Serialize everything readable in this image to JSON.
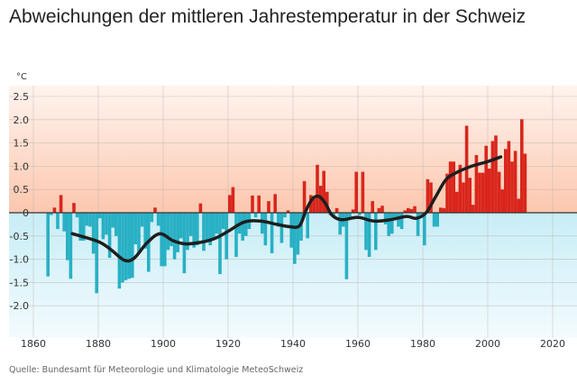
{
  "chart_data": {
    "type": "bar",
    "title": "Abweichungen der mittleren Jahrestemperatur in der Schweiz",
    "ylabel": "°C",
    "xlabel": "",
    "source": "Quelle: Bundesamt für Meteorologie und Klimatologie MeteoSchweiz",
    "xlim": [
      1860,
      2025
    ],
    "ylim": [
      -2.5,
      2.5
    ],
    "x_ticks": [
      "1860",
      "1880",
      "1900",
      "1920",
      "1940",
      "1960",
      "1980",
      "2000",
      "2020"
    ],
    "y_ticks": [
      "2.5",
      "2.0",
      "1.5",
      "1.0",
      "0.5",
      "0",
      "-0.5",
      "-1.0",
      "-1.5",
      "-2.0"
    ],
    "grid": true,
    "colors": {
      "positive": "#d9261c",
      "negative": "#29b0c4",
      "smooth": "#1e1e1e",
      "bg_positive": "#fcc7ae",
      "bg_negative": "#cdeef6"
    },
    "start_year": 1864,
    "values": [
      -1.37,
      -0.05,
      0.11,
      -0.35,
      0.38,
      -0.4,
      -1.02,
      -1.42,
      0.21,
      -0.1,
      -0.6,
      -0.6,
      -0.28,
      -0.3,
      -0.88,
      -1.73,
      -0.12,
      -0.57,
      -0.47,
      -0.97,
      -0.32,
      -0.5,
      -1.63,
      -1.5,
      -1.45,
      -1.42,
      -1.4,
      -0.68,
      -0.88,
      -0.3,
      -0.77,
      -1.27,
      -0.2,
      0.11,
      -0.28,
      -1.15,
      -1.15,
      -0.8,
      -0.72,
      -1.0,
      -0.85,
      -0.55,
      -1.3,
      -0.8,
      -0.5,
      -0.75,
      -0.7,
      0.2,
      -0.82,
      -0.62,
      -0.7,
      -0.55,
      -0.45,
      -1.32,
      -0.35,
      -1.0,
      0.38,
      0.55,
      -0.95,
      -0.45,
      -0.6,
      -0.5,
      -0.35,
      0.37,
      -0.1,
      0.37,
      -0.45,
      -0.7,
      0.25,
      -0.87,
      0.4,
      -0.3,
      -0.65,
      -0.1,
      0.05,
      -0.75,
      -1.1,
      -0.9,
      -0.6,
      0.68,
      -0.55,
      0.38,
      0.3,
      1.03,
      0.58,
      0.9,
      0.45,
      -0.05,
      -0.1,
      0.1,
      -0.47,
      -0.3,
      -1.43,
      -0.1,
      0.07,
      0.88,
      -0.05,
      0.88,
      -0.8,
      -0.95,
      0.25,
      -0.8,
      0.1,
      0.15,
      -0.25,
      -0.5,
      -0.45,
      -0.15,
      -0.3,
      -0.35,
      0.05,
      0.1,
      0.08,
      0.14,
      -0.5,
      -0.05,
      -0.7,
      0.72,
      0.65,
      -0.3,
      -0.3,
      0.11,
      0.1,
      0.84,
      1.1,
      1.1,
      0.45,
      1.03,
      0.65,
      1.87,
      0.75,
      0.17,
      1.24,
      0.86,
      0.86,
      1.44,
      0.95,
      1.54,
      1.66,
      0.88,
      0.5,
      1.37,
      1.54,
      1.1,
      1.33,
      0.3,
      2.01,
      1.27
    ],
    "smooth": {
      "x": [
        1872,
        1880,
        1884,
        1888,
        1891,
        1895,
        1899,
        1903,
        1907,
        1912,
        1916,
        1920,
        1925,
        1930,
        1935,
        1939,
        1942,
        1944,
        1946,
        1948,
        1950,
        1952,
        1955,
        1960,
        1965,
        1970,
        1975,
        1978,
        1981,
        1984,
        1987,
        1990,
        1995,
        2000,
        2004
      ],
      "y": [
        -0.45,
        -0.62,
        -0.8,
        -1.02,
        -0.98,
        -0.65,
        -0.45,
        -0.6,
        -0.67,
        -0.63,
        -0.55,
        -0.4,
        -0.2,
        -0.18,
        -0.25,
        -0.3,
        -0.28,
        0.05,
        0.3,
        0.35,
        0.2,
        -0.05,
        -0.15,
        -0.1,
        -0.18,
        -0.15,
        -0.08,
        -0.12,
        0.0,
        0.35,
        0.7,
        0.85,
        1.0,
        1.1,
        1.2
      ]
    }
  }
}
